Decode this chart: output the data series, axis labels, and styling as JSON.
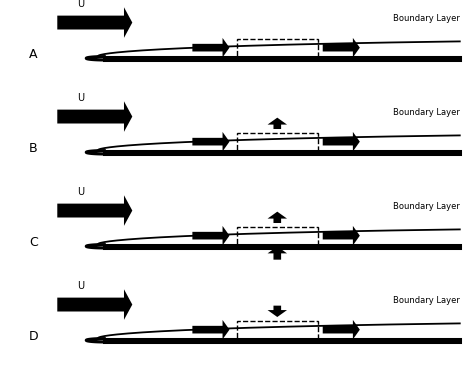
{
  "bg_color": "#ffffff",
  "U_label": "U",
  "boundary_label": "Boundary Layer",
  "panels": [
    {
      "name": "A",
      "vertical_arrows": []
    },
    {
      "name": "B",
      "vertical_arrows": [
        {
          "side": "top",
          "dir": 1
        }
      ]
    },
    {
      "name": "C",
      "vertical_arrows": [
        {
          "side": "top",
          "dir": 1
        },
        {
          "side": "bottom",
          "dir": 1
        }
      ]
    },
    {
      "name": "D",
      "vertical_arrows": [
        {
          "side": "top",
          "dir": -1
        }
      ]
    }
  ]
}
